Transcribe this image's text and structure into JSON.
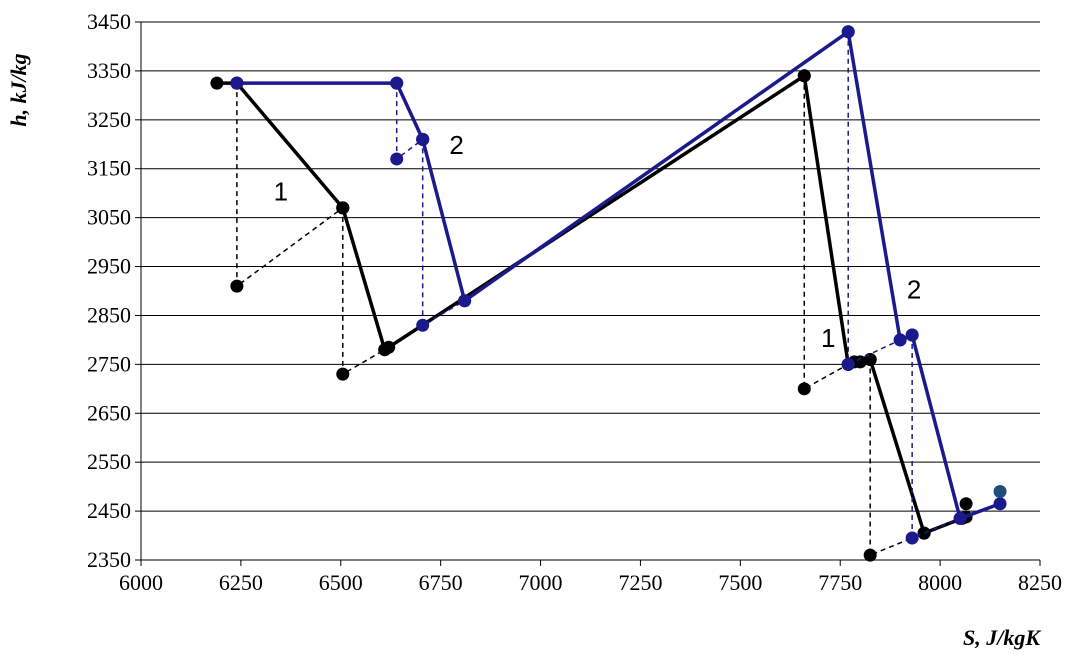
{
  "chart_data": {
    "type": "line",
    "title": "",
    "xlabel": "S, J/kgK",
    "ylabel": "h, kJ/kg",
    "xlim": [
      6000,
      8250
    ],
    "ylim": [
      2350,
      3450
    ],
    "xticks": [
      6000,
      6250,
      6500,
      6750,
      7000,
      7250,
      7500,
      7750,
      8000,
      8250
    ],
    "yticks": [
      2350,
      2450,
      2550,
      2650,
      2750,
      2850,
      2950,
      3050,
      3150,
      3250,
      3350,
      3450
    ],
    "grid": "horizontal",
    "legend": "none",
    "annotations": [
      {
        "text": "1",
        "x": 6350,
        "y": 3085
      },
      {
        "text": "2",
        "x": 6790,
        "y": 3180
      },
      {
        "text": "2",
        "x": 7935,
        "y": 2885
      },
      {
        "text": "1",
        "x": 7720,
        "y": 2785
      }
    ],
    "series": [
      {
        "color": "#000000",
        "style": "solid",
        "points": [
          [
            6190,
            3325
          ],
          [
            6240,
            3325
          ],
          [
            6505,
            3070
          ],
          [
            6610,
            2780
          ],
          [
            6620,
            2785
          ],
          [
            7660,
            3340
          ],
          [
            7770,
            2750
          ],
          [
            7785,
            2755
          ],
          [
            7800,
            2755
          ],
          [
            7825,
            2760
          ],
          [
            7960,
            2405
          ],
          [
            8055,
            2435
          ],
          [
            8065,
            2438
          ]
        ]
      },
      {
        "color": "#000000",
        "style": "dashed",
        "points": [
          [
            6240,
            3325
          ],
          [
            6240,
            2910
          ],
          [
            6505,
            3070
          ]
        ]
      },
      {
        "color": "#000000",
        "style": "dashed",
        "points": [
          [
            6505,
            3070
          ],
          [
            6505,
            2730
          ],
          [
            6610,
            2780
          ]
        ]
      },
      {
        "color": "#000000",
        "style": "dashed",
        "points": [
          [
            7660,
            3340
          ],
          [
            7660,
            2700
          ],
          [
            7770,
            2750
          ]
        ]
      },
      {
        "color": "#000000",
        "style": "dashed",
        "points": [
          [
            7825,
            2760
          ],
          [
            7825,
            2360
          ],
          [
            7960,
            2405
          ]
        ]
      },
      {
        "color": "#000000",
        "style": "markers",
        "points": [
          [
            8065,
            2465
          ]
        ]
      },
      {
        "color": "#1a1a8c",
        "style": "solid",
        "points": [
          [
            6240,
            3325
          ],
          [
            6640,
            3325
          ],
          [
            6705,
            3210
          ],
          [
            6810,
            2880
          ],
          [
            7770,
            3430
          ],
          [
            7900,
            2800
          ],
          [
            7930,
            2810
          ],
          [
            8050,
            2435
          ],
          [
            8150,
            2465
          ]
        ]
      },
      {
        "color": "#1a1a8c",
        "style": "dashed",
        "points": [
          [
            6640,
            3325
          ],
          [
            6640,
            3170
          ],
          [
            6705,
            3210
          ]
        ]
      },
      {
        "color": "#1a1a8c",
        "style": "dashed",
        "points": [
          [
            6705,
            3210
          ],
          [
            6705,
            2830
          ],
          [
            6810,
            2880
          ]
        ]
      },
      {
        "color": "#1a1a8c",
        "style": "dashed",
        "points": [
          [
            7770,
            3430
          ],
          [
            7770,
            2750
          ],
          [
            7900,
            2800
          ]
        ]
      },
      {
        "color": "#1a1a8c",
        "style": "dashed",
        "points": [
          [
            7930,
            2810
          ],
          [
            7930,
            2395
          ],
          [
            8050,
            2435
          ]
        ]
      },
      {
        "color": "#1f4e79",
        "style": "markers",
        "points": [
          [
            8150,
            2490
          ]
        ]
      }
    ]
  }
}
